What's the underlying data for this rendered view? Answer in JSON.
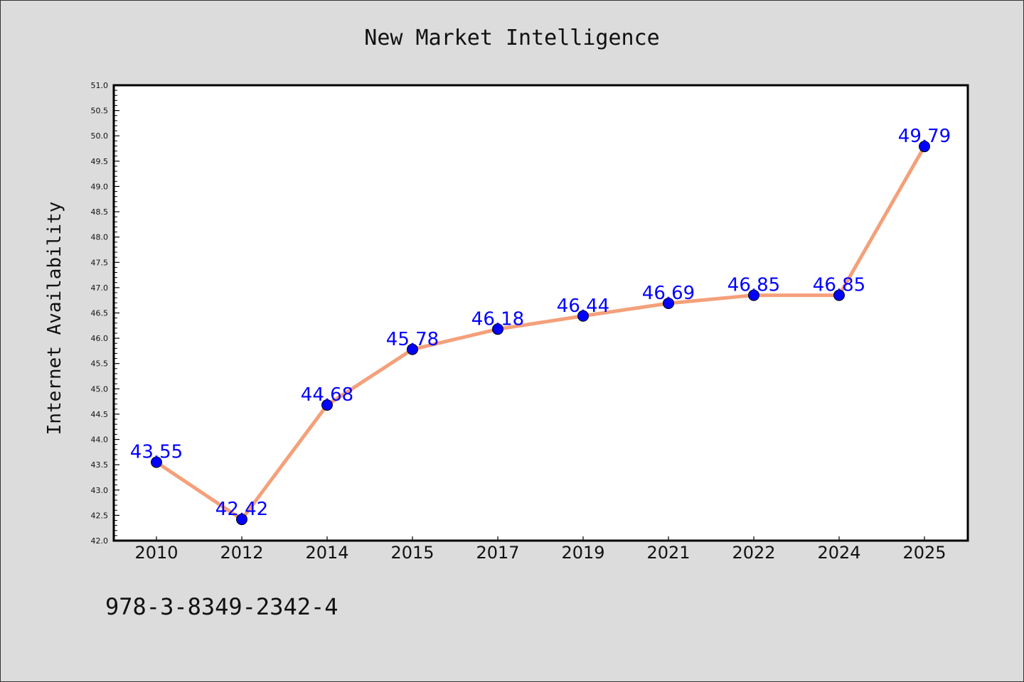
{
  "chart_data": {
    "type": "line",
    "title": "New Market Intelligence",
    "xlabel": "",
    "ylabel": "Internet Availability",
    "categories": [
      "2010",
      "2012",
      "2014",
      "2015",
      "2017",
      "2019",
      "2021",
      "2022",
      "2024",
      "2025"
    ],
    "series": [
      {
        "values": [
          43.55,
          42.42,
          44.68,
          45.78,
          46.18,
          46.44,
          46.69,
          46.85,
          46.85,
          49.79
        ],
        "labels": [
          "43.55",
          "42.42",
          "44.68",
          "45.78",
          "46.18",
          "46.44",
          "46.69",
          "46.85",
          "46.85",
          "49.79"
        ]
      }
    ],
    "ylim": [
      42.0,
      51.0
    ],
    "yticks": [
      "42.0",
      "42.5",
      "43.0",
      "43.5",
      "44.0",
      "44.5",
      "45.0",
      "45.5",
      "46.0",
      "46.5",
      "47.0",
      "47.5",
      "48.0",
      "48.5",
      "49.0",
      "49.5",
      "50.0",
      "50.5",
      "51.0"
    ],
    "grid": false,
    "legend": "none",
    "colors": {
      "line": "#f4a07a",
      "marker": "#0000ff",
      "data_label": "#0000ff",
      "plot_background": "#ffffff",
      "page_background": "#dcdcdc"
    }
  },
  "footer": {
    "isbn": "978-3-8349-2342-4"
  }
}
